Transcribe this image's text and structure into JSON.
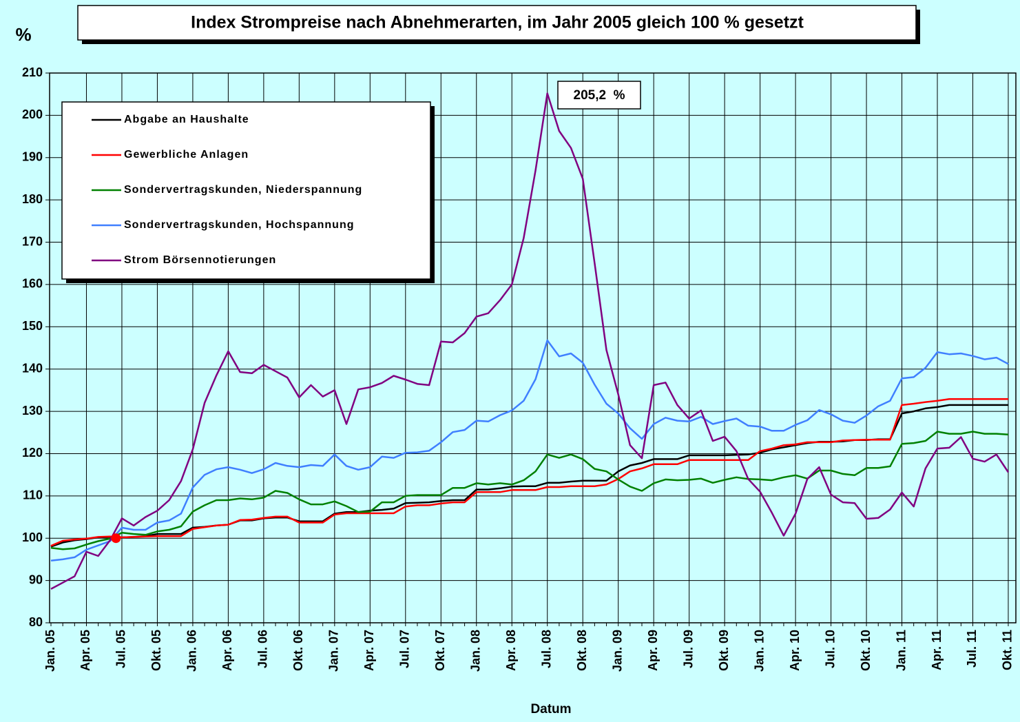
{
  "chart_data": {
    "type": "line",
    "title": "Index Strompreise nach Abnehmerarten, im Jahr 2005 gleich 100 % gesetzt",
    "y_label": "%",
    "x_label": "Datum",
    "categories": [
      "Jan. 05",
      null,
      null,
      "Apr. 05",
      null,
      null,
      "Jul. 05",
      null,
      null,
      "Okt. 05",
      null,
      null,
      "Jan. 06",
      null,
      null,
      "Apr. 06",
      null,
      null,
      "Jul. 06",
      null,
      null,
      "Okt. 06",
      null,
      null,
      "Jan. 07",
      null,
      null,
      "Apr. 07",
      null,
      null,
      "Jul. 07",
      null,
      null,
      "Okt. 07",
      null,
      null,
      "Jan. 08",
      null,
      null,
      "Apr. 08",
      null,
      null,
      "Jul. 08",
      null,
      null,
      "Okt. 08",
      null,
      null,
      "Jan. 09",
      null,
      null,
      "Apr. 09",
      null,
      null,
      "Jul. 09",
      null,
      null,
      "Okt. 09",
      null,
      null,
      "Jan. 10",
      null,
      null,
      "Apr. 10",
      null,
      null,
      "Jul. 10",
      null,
      null,
      "Okt. 10",
      null,
      null,
      "Jan. 11",
      null,
      null,
      "Apr. 11",
      null,
      null,
      "Jul. 11",
      null,
      null,
      "Okt. 11"
    ],
    "ylim": [
      80,
      210
    ],
    "yticks": [
      80,
      90,
      100,
      110,
      120,
      130,
      140,
      150,
      160,
      170,
      180,
      190,
      200,
      210
    ],
    "grid": true,
    "legend": "upper left",
    "series": [
      {
        "name": "Abgabe an Haushalte",
        "color": "#000000",
        "values": [
          98,
          99,
          99.5,
          99.8,
          100.2,
          100.3,
          100.2,
          100.3,
          100.5,
          101,
          101,
          101,
          102.5,
          102.7,
          103,
          103.2,
          104.2,
          104.2,
          104.7,
          104.9,
          104.9,
          104,
          104,
          104,
          105.8,
          106.2,
          106.2,
          106.5,
          106.7,
          107,
          108.3,
          108.4,
          108.5,
          108.8,
          109,
          109,
          111.5,
          111.5,
          111.8,
          112.2,
          112.3,
          112.3,
          113.1,
          113.1,
          113.4,
          113.6,
          113.6,
          113.6,
          115.8,
          117.2,
          117.8,
          118.7,
          118.7,
          118.7,
          119.6,
          119.6,
          119.6,
          119.6,
          119.7,
          119.8,
          120.2,
          121,
          121.5,
          122,
          122.5,
          122.8,
          122.8,
          122.9,
          123.2,
          123.2,
          123.4,
          123.4,
          129.5,
          130,
          130.7,
          131,
          131.5,
          131.5,
          131.5,
          131.5,
          131.5,
          131.5
        ]
      },
      {
        "name": "Gewerbliche Anlagen",
        "color": "#ff0000",
        "values": [
          98.2,
          99.4,
          99.7,
          99.9,
          100.3,
          100.4,
          100.2,
          100.3,
          100.4,
          100.5,
          100.5,
          100.5,
          102.2,
          102.6,
          103,
          103.2,
          104.3,
          104.4,
          104.8,
          105.1,
          105.1,
          103.7,
          103.7,
          103.7,
          105.6,
          105.9,
          105.9,
          105.9,
          105.9,
          105.9,
          107.5,
          107.8,
          107.8,
          108.2,
          108.5,
          108.5,
          110.9,
          110.9,
          110.9,
          111.4,
          111.4,
          111.4,
          112.1,
          112.1,
          112.3,
          112.3,
          112.3,
          112.7,
          114,
          115.8,
          116.5,
          117.5,
          117.5,
          117.5,
          118.5,
          118.5,
          118.5,
          118.5,
          118.5,
          118.5,
          120.6,
          121.2,
          122,
          122.2,
          122.7,
          122.7,
          122.7,
          123.1,
          123.2,
          123.3,
          123.3,
          123.3,
          131.5,
          131.8,
          132.2,
          132.5,
          132.9,
          132.9,
          132.9,
          132.9,
          132.9,
          132.9
        ]
      },
      {
        "name": "Sondervertragskunden, Niederspannung",
        "color": "#008000",
        "values": [
          97.7,
          97.4,
          97.6,
          98.5,
          99.3,
          99.9,
          101.3,
          101,
          100.8,
          101.6,
          102,
          102.8,
          106.3,
          107.8,
          109,
          109,
          109.4,
          109.2,
          109.6,
          111.2,
          110.7,
          109.2,
          108,
          108,
          108.7,
          107.6,
          106.2,
          106.3,
          108.5,
          108.5,
          110,
          110.2,
          110.2,
          110.2,
          111.9,
          111.9,
          113,
          112.7,
          113,
          112.7,
          113.7,
          115.8,
          119.8,
          119,
          119.8,
          118.7,
          116.4,
          115.8,
          113.9,
          112.2,
          111.2,
          113,
          113.9,
          113.7,
          113.8,
          114.1,
          113.1,
          113.8,
          114.4,
          114,
          113.9,
          113.7,
          114.4,
          114.9,
          114.1,
          116,
          116,
          115.2,
          114.9,
          116.6,
          116.6,
          117,
          122.3,
          122.5,
          123,
          125.2,
          124.7,
          124.7,
          125.2,
          124.7,
          124.7,
          124.5
        ]
      },
      {
        "name": "Sondervertragskunden, Hochspannung",
        "color": "#3f7fff",
        "values": [
          94.7,
          95,
          95.5,
          97.3,
          98.3,
          99.3,
          102.5,
          102,
          102,
          103.7,
          104.2,
          105.8,
          112,
          115,
          116.3,
          116.8,
          116.2,
          115.4,
          116.3,
          117.8,
          117.1,
          116.8,
          117.3,
          117.1,
          119.8,
          117.1,
          116.2,
          116.8,
          119.3,
          119,
          120.2,
          120.3,
          120.7,
          122.7,
          125.1,
          125.6,
          127.8,
          127.6,
          129.1,
          130.2,
          132.5,
          137.6,
          146.8,
          143,
          143.7,
          141.5,
          136.3,
          131.8,
          129.5,
          126,
          123.5,
          127,
          128.5,
          127.8,
          127.6,
          128.7,
          127,
          127.7,
          128.3,
          126.6,
          126.4,
          125.4,
          125.4,
          126.8,
          127.9,
          130.3,
          129.3,
          127.8,
          127.3,
          129,
          131.2,
          132.5,
          137.8,
          138.1,
          140.3,
          144,
          143.5,
          143.7,
          143.1,
          142.3,
          142.7,
          141.2
        ]
      },
      {
        "name": "Strom Börsennotierungen",
        "color": "#800080",
        "values": [
          88,
          89.5,
          91,
          96.8,
          95.8,
          99.5,
          104.7,
          103,
          105,
          106.5,
          109,
          113.5,
          121,
          132,
          138.5,
          144.2,
          139.3,
          139,
          141,
          139.5,
          138,
          133.3,
          136.2,
          133.5,
          135,
          127,
          135.2,
          135.7,
          136.7,
          138.4,
          137.5,
          136.5,
          136.2,
          146.5,
          146.3,
          148.5,
          152.4,
          153.2,
          156.3,
          160,
          171,
          187,
          205.2,
          196.3,
          192.3,
          185,
          165,
          144.5,
          134,
          122,
          118.9,
          136.2,
          136.8,
          131.5,
          128.3,
          130.2,
          123,
          124,
          120.6,
          114,
          111,
          106,
          100.6,
          105.8,
          114,
          116.8,
          110.3,
          108.5,
          108.3,
          104.6,
          104.8,
          106.8,
          110.8,
          107.5,
          116.5,
          121.2,
          121.4,
          123.9,
          118.8,
          118.1,
          119.8,
          115.6
        ]
      }
    ],
    "annotation": {
      "text": "205,2  %"
    },
    "reference_point": {
      "value": 100,
      "color": "#ff0000"
    }
  }
}
